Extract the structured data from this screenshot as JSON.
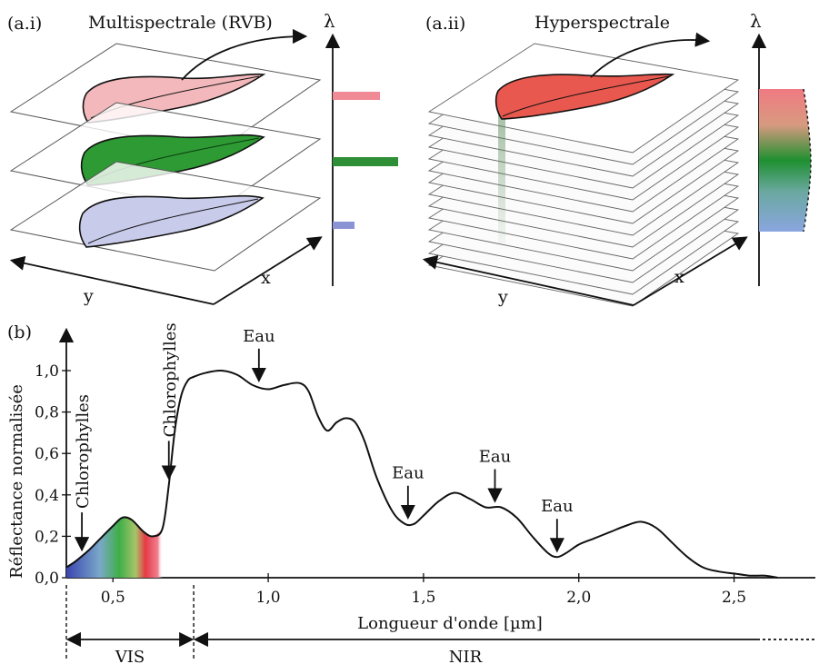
{
  "panel_a1": {
    "label": "(a.i)",
    "title": "Multispectrale (RVB)",
    "axis_y": "y",
    "axis_x": "x",
    "axis_lambda": "λ"
  },
  "panel_a2": {
    "label": "(a.ii)",
    "title": "Hyperspectrale",
    "axis_y": "y",
    "axis_x": "x",
    "axis_lambda": "λ"
  },
  "panel_b": {
    "label": "(b)"
  },
  "colors": {
    "red_band": "#f08a94",
    "green_band": "#2f8f36",
    "blue_band": "#8a93d4",
    "leaf_red": "#f3b8bb",
    "leaf_green": "#2d9a33",
    "leaf_blue": "#c9cbea"
  },
  "chart_data": {
    "type": "line",
    "xlabel": "Longueur d'onde [µm]",
    "ylabel": "Réflectance normalisée",
    "xlim": [
      0.35,
      2.75
    ],
    "ylim": [
      0,
      1.0
    ],
    "xticks": [
      {
        "v": 0.5,
        "label": "0,5"
      },
      {
        "v": 1.0,
        "label": "1,0"
      },
      {
        "v": 1.5,
        "label": "1,5"
      },
      {
        "v": 2.0,
        "label": "2,0"
      },
      {
        "v": 2.5,
        "label": "2,5"
      }
    ],
    "yticks": [
      {
        "v": 0.0,
        "label": "0,0"
      },
      {
        "v": 0.2,
        "label": "0,2"
      },
      {
        "v": 0.4,
        "label": "0,4"
      },
      {
        "v": 0.6,
        "label": "0,6"
      },
      {
        "v": 0.8,
        "label": "0,8"
      },
      {
        "v": 1.0,
        "label": "1,0"
      }
    ],
    "series": [
      {
        "x": [
          0.35,
          0.38,
          0.42,
          0.46,
          0.5,
          0.53,
          0.56,
          0.6,
          0.63,
          0.66,
          0.68,
          0.7,
          0.72,
          0.74,
          0.76,
          0.8,
          0.85,
          0.9,
          0.95,
          1.0,
          1.05,
          1.1,
          1.13,
          1.16,
          1.19,
          1.22,
          1.25,
          1.28,
          1.31,
          1.35,
          1.4,
          1.44,
          1.47,
          1.5,
          1.55,
          1.6,
          1.65,
          1.7,
          1.75,
          1.8,
          1.85,
          1.9,
          1.93,
          1.96,
          2.0,
          2.05,
          2.1,
          2.15,
          2.2,
          2.25,
          2.3,
          2.35,
          2.4,
          2.45,
          2.5,
          2.55,
          2.6,
          2.64
        ],
        "y": [
          0.05,
          0.08,
          0.13,
          0.19,
          0.25,
          0.29,
          0.28,
          0.22,
          0.2,
          0.24,
          0.45,
          0.72,
          0.88,
          0.95,
          0.97,
          0.99,
          1.0,
          0.98,
          0.93,
          0.91,
          0.93,
          0.94,
          0.9,
          0.78,
          0.71,
          0.75,
          0.77,
          0.75,
          0.66,
          0.48,
          0.32,
          0.26,
          0.26,
          0.3,
          0.37,
          0.41,
          0.38,
          0.34,
          0.34,
          0.29,
          0.2,
          0.12,
          0.1,
          0.12,
          0.16,
          0.19,
          0.22,
          0.25,
          0.27,
          0.24,
          0.17,
          0.1,
          0.05,
          0.03,
          0.02,
          0.01,
          0.01,
          0.0
        ]
      }
    ],
    "annotations": [
      {
        "text": "Chlorophylles",
        "x": 0.4,
        "vertical": true
      },
      {
        "text": "Chlorophylles",
        "x": 0.68,
        "vertical": true
      },
      {
        "text": "Eau",
        "x": 0.97
      },
      {
        "text": "Eau",
        "x": 1.45
      },
      {
        "text": "Eau",
        "x": 1.73
      },
      {
        "text": "Eau",
        "x": 1.93
      }
    ],
    "regions": [
      {
        "label": "VIS",
        "from": 0.35,
        "to": 0.76
      },
      {
        "label": "NIR",
        "from": 0.76,
        "to": 2.75
      }
    ]
  }
}
